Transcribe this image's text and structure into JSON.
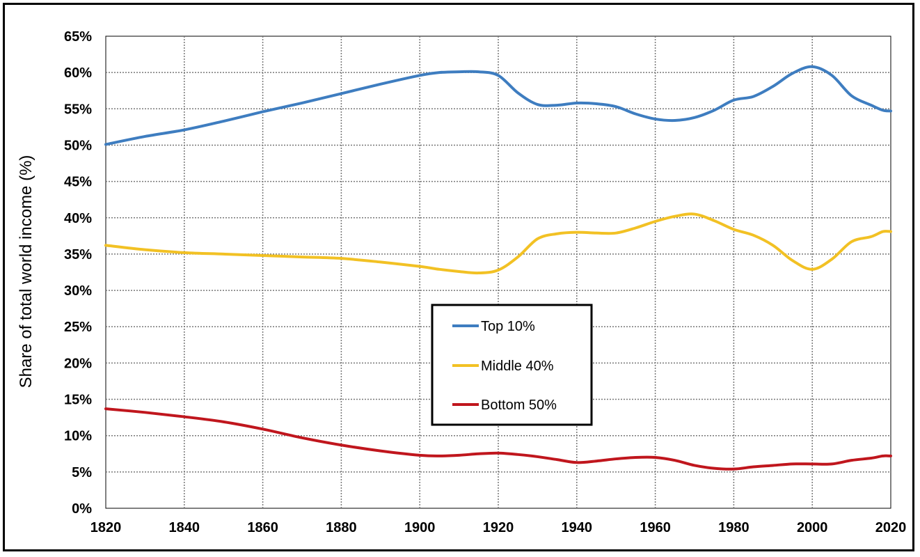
{
  "chart_data": {
    "type": "line",
    "title": "",
    "xlabel": "",
    "ylabel": "Share of total world income (%)",
    "xlim": [
      1820,
      2020
    ],
    "ylim": [
      0,
      65
    ],
    "x_ticks": [
      1820,
      1840,
      1860,
      1880,
      1900,
      1920,
      1940,
      1960,
      1980,
      2000,
      2020
    ],
    "x_tick_labels": [
      "1820",
      "1840",
      "1860",
      "1880",
      "1900",
      "1920",
      "1940",
      "1960",
      "1980",
      "2000",
      "2020"
    ],
    "y_ticks": [
      0,
      5,
      10,
      15,
      20,
      25,
      30,
      35,
      40,
      45,
      50,
      55,
      60,
      65
    ],
    "y_tick_labels": [
      "0%",
      "5%",
      "10%",
      "15%",
      "20%",
      "25%",
      "30%",
      "35%",
      "40%",
      "45%",
      "50%",
      "55%",
      "60%",
      "65%"
    ],
    "grid": true,
    "legend_position": "center",
    "series": [
      {
        "name": "Top 10%",
        "color": "#3e7dc0",
        "x": [
          1820,
          1830,
          1840,
          1850,
          1860,
          1870,
          1880,
          1890,
          1900,
          1905,
          1910,
          1915,
          1920,
          1925,
          1930,
          1935,
          1940,
          1945,
          1950,
          1955,
          1960,
          1965,
          1970,
          1975,
          1980,
          1985,
          1990,
          1995,
          2000,
          2005,
          2010,
          2015,
          2018,
          2020
        ],
        "y": [
          50.1,
          51.2,
          52.1,
          53.3,
          54.6,
          55.8,
          57.1,
          58.4,
          59.6,
          60.0,
          60.1,
          60.1,
          59.6,
          57.2,
          55.6,
          55.5,
          55.8,
          55.7,
          55.3,
          54.3,
          53.6,
          53.4,
          53.8,
          54.8,
          56.2,
          56.7,
          58.1,
          59.9,
          60.8,
          59.6,
          56.8,
          55.5,
          54.8,
          54.7
        ]
      },
      {
        "name": "Middle 40%",
        "color": "#f2c124",
        "x": [
          1820,
          1830,
          1840,
          1850,
          1860,
          1870,
          1880,
          1890,
          1900,
          1905,
          1910,
          1915,
          1920,
          1925,
          1930,
          1935,
          1940,
          1945,
          1950,
          1955,
          1960,
          1965,
          1970,
          1975,
          1980,
          1985,
          1990,
          1995,
          2000,
          2005,
          2010,
          2015,
          2018,
          2020
        ],
        "y": [
          36.2,
          35.6,
          35.2,
          35.0,
          34.8,
          34.6,
          34.4,
          33.9,
          33.3,
          32.9,
          32.6,
          32.4,
          32.8,
          34.6,
          37.1,
          37.8,
          38.0,
          37.9,
          37.9,
          38.6,
          39.5,
          40.2,
          40.5,
          39.6,
          38.4,
          37.6,
          36.2,
          34.1,
          32.9,
          34.3,
          36.7,
          37.4,
          38.1,
          38.1
        ]
      },
      {
        "name": "Bottom 50%",
        "color": "#c0161d",
        "x": [
          1820,
          1830,
          1840,
          1850,
          1860,
          1870,
          1880,
          1890,
          1900,
          1905,
          1910,
          1915,
          1920,
          1925,
          1930,
          1935,
          1940,
          1945,
          1950,
          1955,
          1960,
          1965,
          1970,
          1975,
          1980,
          1985,
          1990,
          1995,
          2000,
          2005,
          2010,
          2015,
          2018,
          2020
        ],
        "y": [
          13.7,
          13.2,
          12.6,
          11.9,
          10.9,
          9.7,
          8.7,
          7.9,
          7.3,
          7.2,
          7.3,
          7.5,
          7.6,
          7.4,
          7.1,
          6.7,
          6.3,
          6.5,
          6.8,
          7.0,
          7.0,
          6.6,
          5.9,
          5.5,
          5.4,
          5.7,
          5.9,
          6.1,
          6.1,
          6.1,
          6.6,
          6.9,
          7.2,
          7.2
        ]
      }
    ]
  }
}
